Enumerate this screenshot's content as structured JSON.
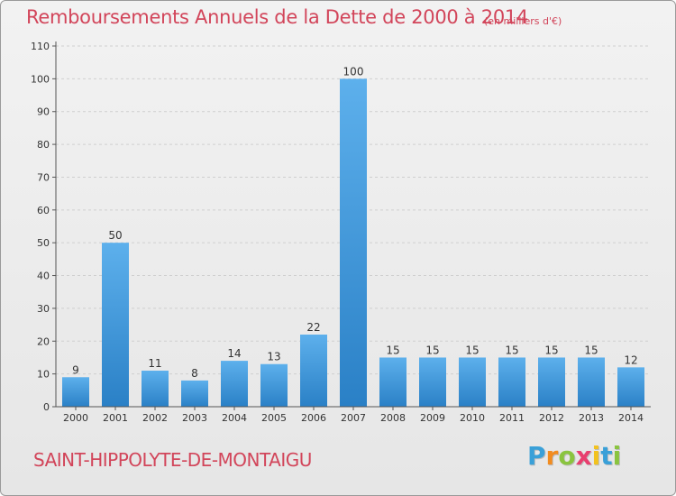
{
  "header": {
    "title": "Remboursements Annuels de la Dette de 2000 à 2014",
    "unit": "(en milliers d'€)"
  },
  "footer": {
    "city": "SAINT-HIPPOLYTE-DE-MONTAIGU",
    "logo_letters": [
      "P",
      "r",
      "o",
      "x",
      "i",
      "t",
      "i"
    ],
    "logo_colors": [
      "#3aa0d8",
      "#f28c1f",
      "#8ac43f",
      "#e83f6f",
      "#f2c21f",
      "#3aa0d8",
      "#8ac43f"
    ]
  },
  "chart_data": {
    "type": "bar",
    "title": "Remboursements Annuels de la Dette de 2000 à 2014",
    "subtitle": "(en milliers d'€)",
    "categories": [
      "2000",
      "2001",
      "2002",
      "2003",
      "2004",
      "2005",
      "2006",
      "2007",
      "2008",
      "2009",
      "2010",
      "2011",
      "2012",
      "2013",
      "2014"
    ],
    "values": [
      9,
      50,
      11,
      8,
      14,
      13,
      22,
      100,
      15,
      15,
      15,
      15,
      15,
      15,
      12
    ],
    "ylim": [
      0,
      110
    ],
    "yticks": [
      0,
      10,
      20,
      30,
      40,
      50,
      60,
      70,
      80,
      90,
      100,
      110
    ],
    "grid": true,
    "bar_color": "#3d97dc"
  }
}
